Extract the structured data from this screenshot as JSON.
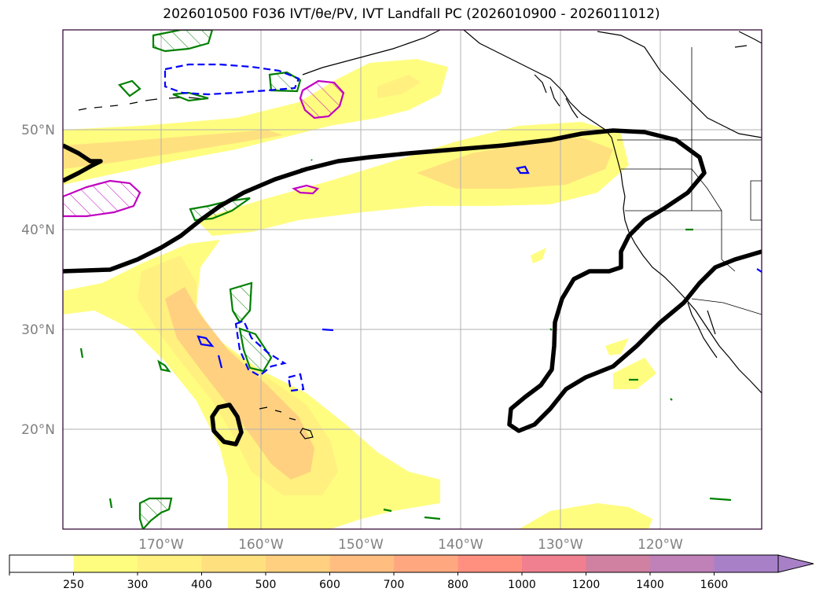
{
  "title": {
    "text": "2026010500 F036 IVT/θe/PV, IVT Landfall PC (2026010900 - 2026011012)"
  },
  "map": {
    "projection": "cylindrical",
    "lon_range": [
      -180,
      -110
    ],
    "lat_range": [
      10,
      60
    ],
    "lat_labels": [
      "20°N",
      "30°N",
      "40°N",
      "50°N"
    ],
    "lon_labels": [
      "170°W",
      "160°W",
      "150°W",
      "140°W",
      "130°W",
      "120°W"
    ],
    "gridline_color": "#b0b0b0",
    "ocean_color": "#ffffff",
    "coast_color": "#000000"
  },
  "overlays": {
    "landfall_pc_color": "#000000",
    "pv_positive_color": "#008000",
    "pv_negative_color": "#0000ff",
    "theta_e_color": "#c000c0"
  },
  "colorbar": {
    "levels": [
      "250",
      "300",
      "400",
      "500",
      "600",
      "700",
      "800",
      "1000",
      "1200",
      "1400",
      "1600"
    ],
    "colors": [
      "#ffffff",
      "#fffd7f",
      "#fff07f",
      "#ffe07f",
      "#ffd080",
      "#ffbe80",
      "#ffa880",
      "#ff9080",
      "#f0808f",
      "#d080a0",
      "#c080b8",
      "#a880c8"
    ],
    "extend": "max"
  }
}
